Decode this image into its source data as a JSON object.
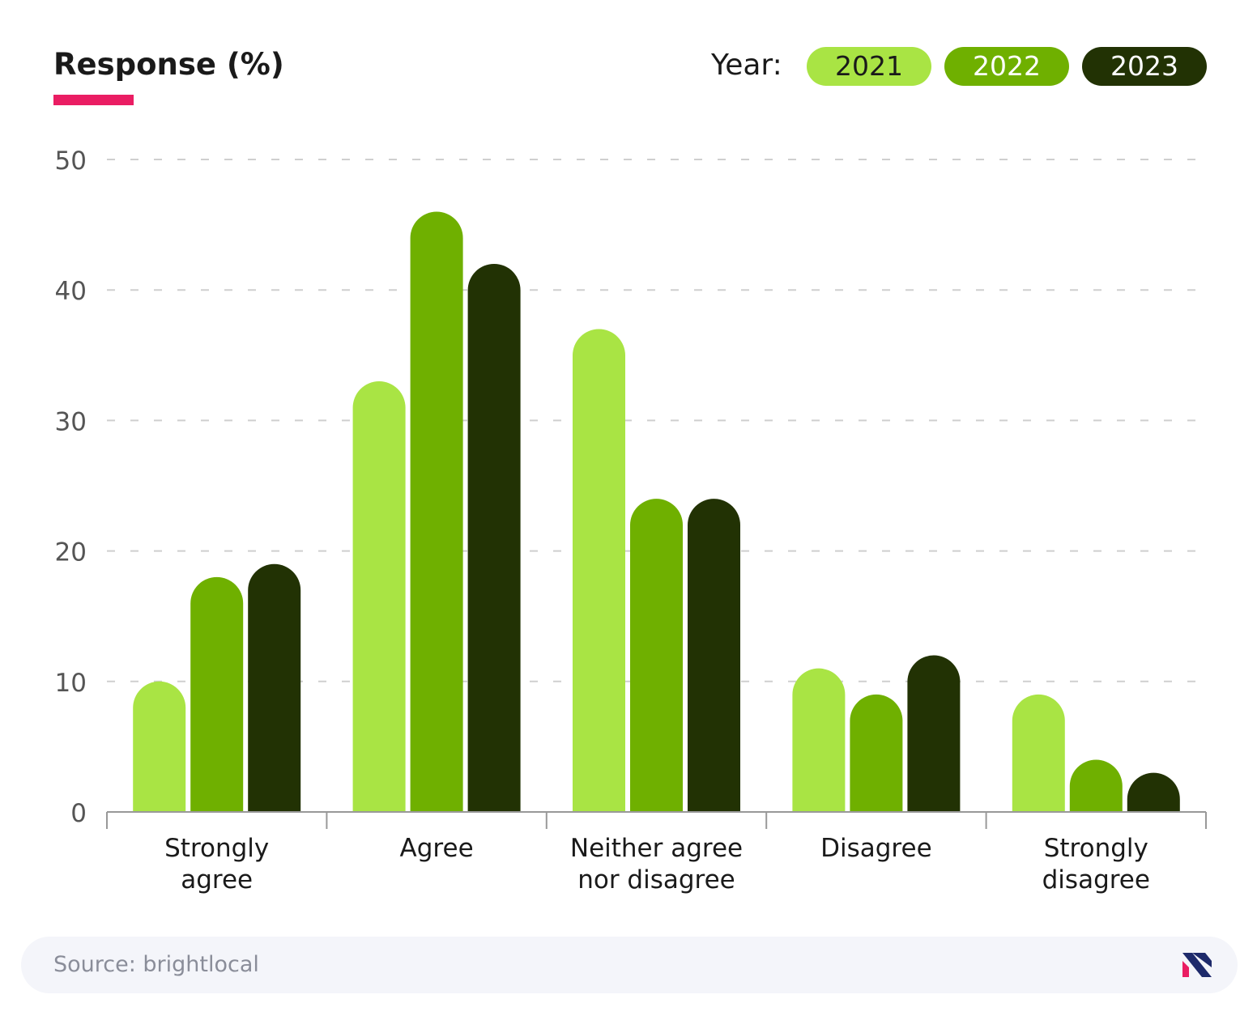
{
  "header": {
    "title": "Response (%)"
  },
  "legend": {
    "title": "Year:",
    "items": [
      {
        "label": "2021",
        "color": "#a9e444",
        "text_color": "#1a1a1a"
      },
      {
        "label": "2022",
        "color": "#6fb000",
        "text_color": "#ffffff"
      },
      {
        "label": "2023",
        "color": "#223204",
        "text_color": "#ffffff"
      }
    ]
  },
  "chart_data": {
    "type": "bar",
    "title": "Response (%)",
    "xlabel": "",
    "ylabel": "",
    "ylim": [
      0,
      50
    ],
    "yticks": [
      0,
      10,
      20,
      30,
      40,
      50
    ],
    "grid": true,
    "legend_position": "top-right",
    "categories": [
      [
        "Strongly",
        "agree"
      ],
      [
        "Agree"
      ],
      [
        "Neither agree",
        "nor disagree"
      ],
      [
        "Disagree"
      ],
      [
        "Strongly",
        "disagree"
      ]
    ],
    "series": [
      {
        "name": "2021",
        "color": "#a9e444",
        "values": [
          10,
          33,
          37,
          11,
          9
        ]
      },
      {
        "name": "2022",
        "color": "#6fb000",
        "values": [
          18,
          46,
          24,
          9,
          4
        ]
      },
      {
        "name": "2023",
        "color": "#223204",
        "values": [
          19,
          42,
          24,
          12,
          3
        ]
      }
    ]
  },
  "footer": {
    "source": "Source: brightlocal",
    "logo_icon": "brightlocal-logo-icon"
  }
}
